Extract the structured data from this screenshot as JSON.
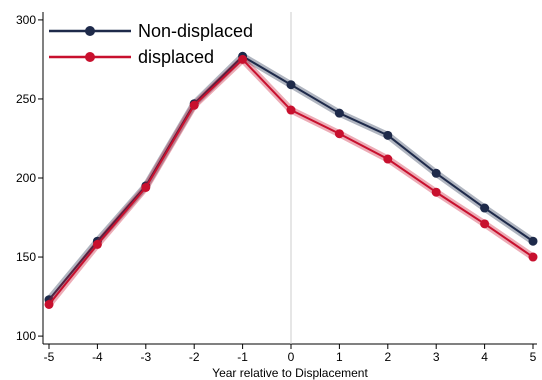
{
  "chart_data": {
    "type": "line",
    "title": "",
    "xlabel": "Year relative to Displacement",
    "ylabel": "",
    "x": [
      -5,
      -4,
      -3,
      -2,
      -1,
      0,
      1,
      2,
      3,
      4,
      5
    ],
    "xlim": [
      -5,
      5
    ],
    "ylim": [
      95,
      305
    ],
    "yticks": [
      100,
      150,
      200,
      250,
      300
    ],
    "reference_line_x": 0,
    "grid": false,
    "legend_position": "top-left",
    "series": [
      {
        "name": "Non-displaced",
        "color": "#1e2a4a",
        "values": [
          123,
          160,
          195,
          247,
          277,
          259,
          241,
          227,
          203,
          181,
          160
        ]
      },
      {
        "name": "displaced",
        "color": "#c8102e",
        "values": [
          120,
          158,
          194,
          246,
          275,
          243,
          228,
          212,
          191,
          171,
          150
        ]
      }
    ]
  }
}
